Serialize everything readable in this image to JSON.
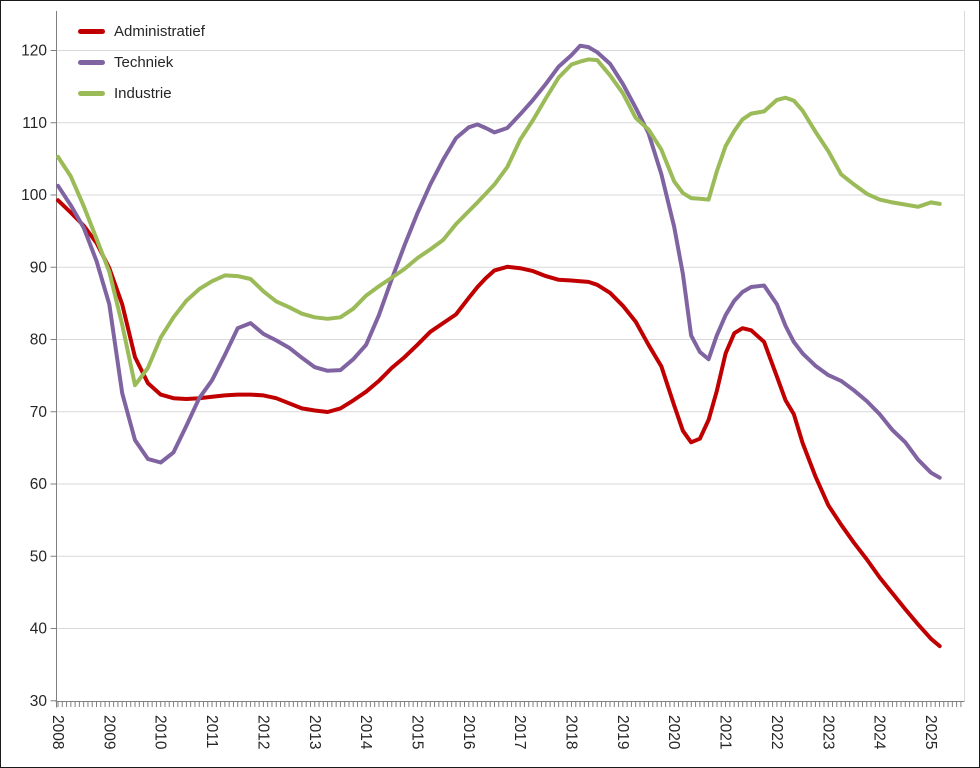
{
  "chart_data": {
    "type": "line",
    "title": "",
    "xlabel": "",
    "ylabel": "",
    "ylim": [
      30,
      125
    ],
    "yticks": [
      30,
      40,
      50,
      60,
      70,
      80,
      90,
      100,
      110,
      120
    ],
    "xticks": [
      2008,
      2009,
      2010,
      2011,
      2012,
      2013,
      2014,
      2015,
      2016,
      2017,
      2018,
      2019,
      2020,
      2021,
      2022,
      2023,
      2024,
      2025
    ],
    "grid": "horizontal",
    "legend_position": "top-left",
    "x": [
      2008.0,
      2008.25,
      2008.5,
      2008.75,
      2009.0,
      2009.25,
      2009.5,
      2009.75,
      2010.0,
      2010.25,
      2010.5,
      2010.75,
      2011.0,
      2011.25,
      2011.5,
      2011.75,
      2012.0,
      2012.25,
      2012.5,
      2012.75,
      2013.0,
      2013.25,
      2013.5,
      2013.75,
      2014.0,
      2014.25,
      2014.5,
      2014.75,
      2015.0,
      2015.25,
      2015.5,
      2015.75,
      2016.0,
      2016.17,
      2016.33,
      2016.5,
      2016.75,
      2017.0,
      2017.25,
      2017.5,
      2017.75,
      2018.0,
      2018.17,
      2018.33,
      2018.5,
      2018.75,
      2019.0,
      2019.25,
      2019.5,
      2019.75,
      2020.0,
      2020.17,
      2020.33,
      2020.5,
      2020.67,
      2020.83,
      2021.0,
      2021.17,
      2021.33,
      2021.5,
      2021.75,
      2022.0,
      2022.17,
      2022.33,
      2022.5,
      2022.75,
      2023.0,
      2023.25,
      2023.5,
      2023.75,
      2024.0,
      2024.25,
      2024.5,
      2024.75,
      2025.0,
      2025.17
    ],
    "series": [
      {
        "name": "Administratief",
        "color": "#c00000",
        "values": [
          99.2,
          97.5,
          95.7,
          93.3,
          89.8,
          84.8,
          77.5,
          73.9,
          72.3,
          71.8,
          71.7,
          71.8,
          72.0,
          72.2,
          72.3,
          72.3,
          72.2,
          71.8,
          71.1,
          70.4,
          70.1,
          69.9,
          70.4,
          71.5,
          72.7,
          74.2,
          76.0,
          77.5,
          79.2,
          81.0,
          82.2,
          83.4,
          85.7,
          87.2,
          88.4,
          89.5,
          90.0,
          89.8,
          89.4,
          88.7,
          88.2,
          88.1,
          88.0,
          87.9,
          87.5,
          86.4,
          84.6,
          82.4,
          79.2,
          76.2,
          70.8,
          67.3,
          65.7,
          66.2,
          68.8,
          72.8,
          78.0,
          80.8,
          81.5,
          81.2,
          79.6,
          74.8,
          71.5,
          69.6,
          65.6,
          61.0,
          57.0,
          54.3,
          51.8,
          49.5,
          47.0,
          44.8,
          42.6,
          40.5,
          38.5,
          37.5
        ]
      },
      {
        "name": "Techniek",
        "color": "#8064a2",
        "values": [
          101.2,
          98.5,
          95.4,
          90.8,
          84.8,
          72.5,
          66.0,
          63.4,
          62.9,
          64.3,
          68.0,
          71.8,
          74.3,
          77.8,
          81.5,
          82.2,
          80.7,
          79.8,
          78.8,
          77.4,
          76.1,
          75.6,
          75.7,
          77.2,
          79.2,
          83.3,
          88.3,
          93.0,
          97.4,
          101.4,
          104.8,
          107.8,
          109.3,
          109.7,
          109.2,
          108.6,
          109.2,
          111.1,
          113.1,
          115.3,
          117.7,
          119.3,
          120.6,
          120.4,
          119.7,
          118.1,
          115.3,
          112.0,
          108.5,
          102.8,
          95.5,
          89.0,
          80.5,
          78.2,
          77.2,
          80.5,
          83.3,
          85.3,
          86.5,
          87.2,
          87.4,
          84.8,
          81.8,
          79.6,
          78.0,
          76.3,
          75.0,
          74.2,
          72.9,
          71.4,
          69.6,
          67.4,
          65.7,
          63.3,
          61.5,
          60.8
        ]
      },
      {
        "name": "Industrie",
        "color": "#9bbb59",
        "values": [
          105.2,
          102.5,
          98.4,
          93.9,
          89.3,
          82.0,
          73.6,
          76.0,
          80.2,
          83.0,
          85.3,
          86.9,
          88.0,
          88.8,
          88.7,
          88.3,
          86.6,
          85.2,
          84.4,
          83.5,
          83.0,
          82.8,
          83.0,
          84.2,
          86.0,
          87.3,
          88.5,
          89.7,
          91.2,
          92.4,
          93.7,
          95.9,
          97.7,
          98.9,
          100.1,
          101.4,
          103.8,
          107.6,
          110.3,
          113.3,
          116.2,
          118.0,
          118.4,
          118.7,
          118.6,
          116.5,
          114.0,
          110.6,
          109.0,
          106.2,
          101.8,
          100.2,
          99.5,
          99.4,
          99.3,
          103.2,
          106.7,
          108.8,
          110.4,
          111.2,
          111.5,
          113.1,
          113.4,
          113.0,
          111.6,
          108.7,
          106.0,
          102.8,
          101.4,
          100.1,
          99.3,
          98.9,
          98.6,
          98.3,
          98.9,
          98.7
        ]
      }
    ],
    "colors": {
      "gridline": "#d9d9d9",
      "axis": "#808080",
      "tick_label": "#262626",
      "plot_right_border": "#d9d9d9"
    }
  }
}
